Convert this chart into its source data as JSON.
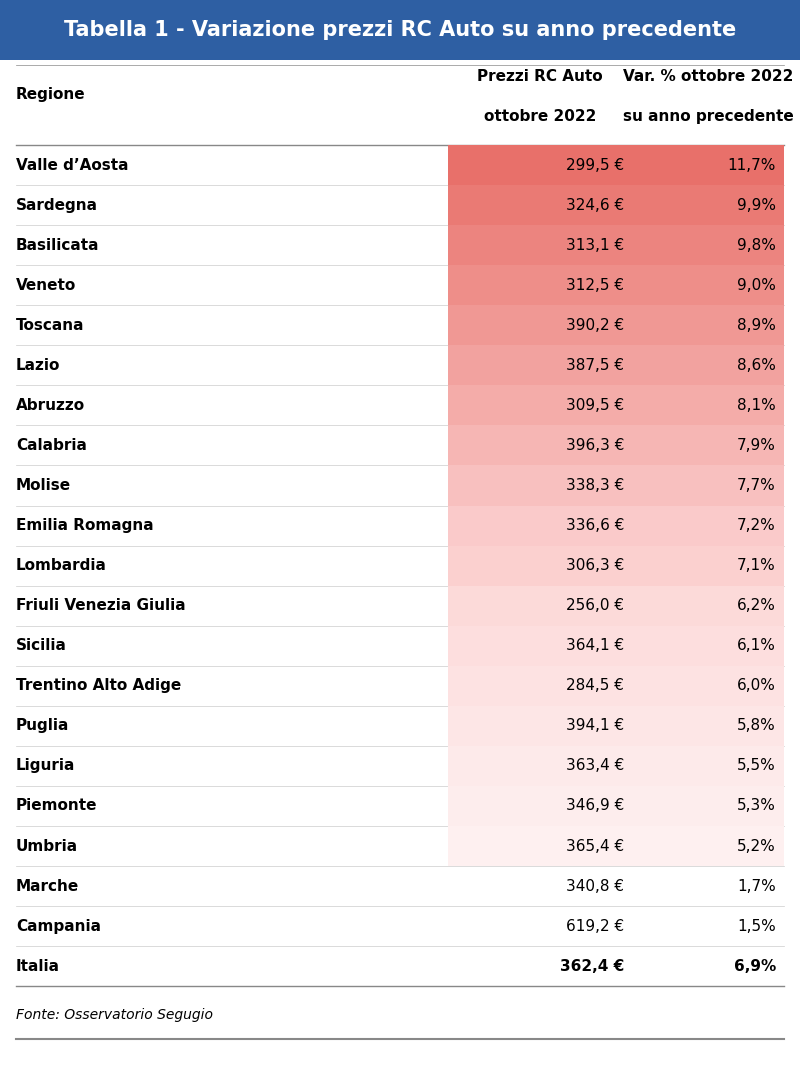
{
  "title": "Tabella 1 - Variazione prezzi RC Auto su anno precedente",
  "title_bg": "#2E5FA3",
  "title_color": "#FFFFFF",
  "col_headers": [
    "Regione",
    "Prezzi RC Auto\nottobre 2022",
    "Var. % ottobre 2022\nsu anno precedente"
  ],
  "rows": [
    {
      "regione": "Valle d’Aosta",
      "prezzo": "299,5 €",
      "var": "11,7%",
      "highlighted": true
    },
    {
      "regione": "Sardegna",
      "prezzo": "324,6 €",
      "var": "9,9%",
      "highlighted": true
    },
    {
      "regione": "Basilicata",
      "prezzo": "313,1 €",
      "var": "9,8%",
      "highlighted": true
    },
    {
      "regione": "Veneto",
      "prezzo": "312,5 €",
      "var": "9,0%",
      "highlighted": true
    },
    {
      "regione": "Toscana",
      "prezzo": "390,2 €",
      "var": "8,9%",
      "highlighted": true
    },
    {
      "regione": "Lazio",
      "prezzo": "387,5 €",
      "var": "8,6%",
      "highlighted": true
    },
    {
      "regione": "Abruzzo",
      "prezzo": "309,5 €",
      "var": "8,1%",
      "highlighted": true
    },
    {
      "regione": "Calabria",
      "prezzo": "396,3 €",
      "var": "7,9%",
      "highlighted": true
    },
    {
      "regione": "Molise",
      "prezzo": "338,3 €",
      "var": "7,7%",
      "highlighted": true
    },
    {
      "regione": "Emilia Romagna",
      "prezzo": "336,6 €",
      "var": "7,2%",
      "highlighted": true
    },
    {
      "regione": "Lombardia",
      "prezzo": "306,3 €",
      "var": "7,1%",
      "highlighted": true
    },
    {
      "regione": "Friuli Venezia Giulia",
      "prezzo": "256,0 €",
      "var": "6,2%",
      "highlighted": true
    },
    {
      "regione": "Sicilia",
      "prezzo": "364,1 €",
      "var": "6,1%",
      "highlighted": true
    },
    {
      "regione": "Trentino Alto Adige",
      "prezzo": "284,5 €",
      "var": "6,0%",
      "highlighted": true
    },
    {
      "regione": "Puglia",
      "prezzo": "394,1 €",
      "var": "5,8%",
      "highlighted": true
    },
    {
      "regione": "Liguria",
      "prezzo": "363,4 €",
      "var": "5,5%",
      "highlighted": true
    },
    {
      "regione": "Piemonte",
      "prezzo": "346,9 €",
      "var": "5,3%",
      "highlighted": true
    },
    {
      "regione": "Umbria",
      "prezzo": "365,4 €",
      "var": "5,2%",
      "highlighted": true
    },
    {
      "regione": "Marche",
      "prezzo": "340,8 €",
      "var": "1,7%",
      "highlighted": false
    },
    {
      "regione": "Campania",
      "prezzo": "619,2 €",
      "var": "1,5%",
      "highlighted": false
    },
    {
      "regione": "Italia",
      "prezzo": "362,4 €",
      "var": "6,9%",
      "highlighted": false,
      "bold": true
    }
  ],
  "footer": "Fonte: Osservatorio Segugio",
  "highlight_colors": [
    "#E8706A",
    "#EA7A74",
    "#EC847F",
    "#EE8E89",
    "#F09894",
    "#F2A29F",
    "#F4ACA9",
    "#F6B6B4",
    "#F8C0BF",
    "#FACACA",
    "#FBD0CF",
    "#FCDAD9",
    "#FDDEDE",
    "#FDE2E2",
    "#FDE6E6",
    "#FDEAEA",
    "#FDEDED",
    "#FEF0F0",
    "#FFFFFF",
    "#FFFFFF",
    "#FFFFFF"
  ],
  "bg_color": "#FFFFFF",
  "separator_color": "#CCCCCC",
  "text_color": "#000000",
  "title_fontsize": 15,
  "header_fontsize": 11,
  "row_fontsize": 11,
  "footer_fontsize": 10
}
